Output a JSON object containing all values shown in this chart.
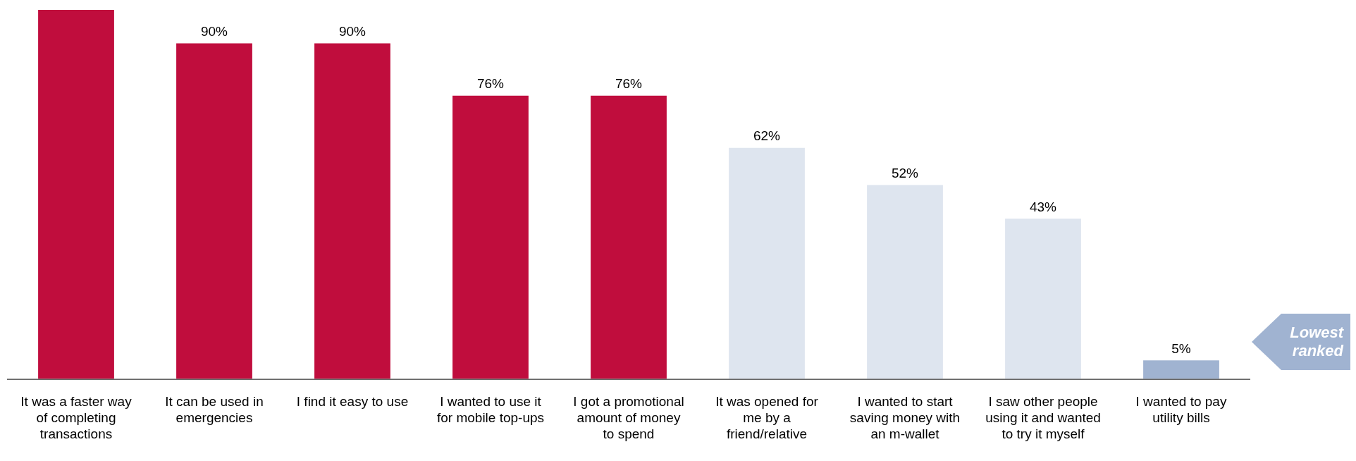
{
  "chart_data": {
    "type": "bar",
    "categories": [
      "It was a faster way of completing transactions",
      "It can be used in emergencies",
      "I find it easy to use",
      "I wanted to use it for mobile top-ups",
      "I got a promotional amount of money to spend",
      "It was opened for me by a friend/relative",
      "I wanted to start saving money with an m-wallet",
      "I saw other people using it and wanted to try it myself",
      "I wanted to pay utility bills"
    ],
    "values": [
      99,
      90,
      90,
      76,
      76,
      62,
      52,
      43,
      5
    ],
    "value_labels": [
      null,
      "90%",
      "90%",
      "76%",
      "76%",
      "62%",
      "52%",
      "43%",
      "5%"
    ],
    "colors": [
      "#c00d3d",
      "#c00d3d",
      "#c00d3d",
      "#c00d3d",
      "#c00d3d",
      "#dee5ef",
      "#dee5ef",
      "#dee5ef",
      "#a0b3d1"
    ],
    "ylim": [
      0,
      99
    ],
    "tick_labels": "x",
    "grid": false,
    "legend": false,
    "annotations": [
      "Lowest ranked"
    ]
  }
}
